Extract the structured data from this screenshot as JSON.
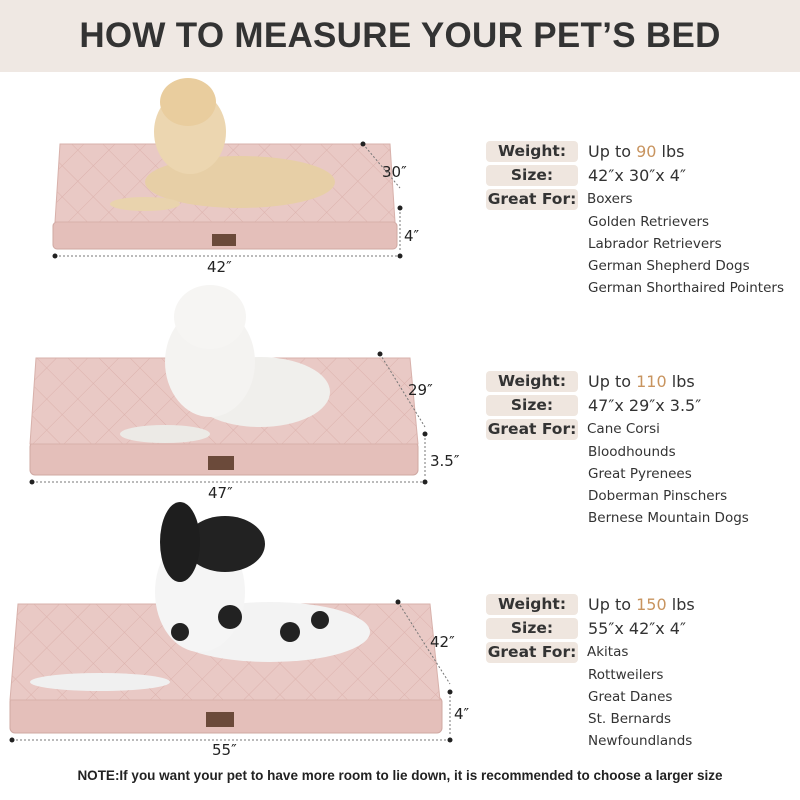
{
  "title": "HOW TO MEASURE YOUR PET’S BED",
  "colors": {
    "header_bg": "#efe8e3",
    "accent_number": "#c8945f",
    "bed": "#e9c9c5",
    "label_bg": "#efe6df"
  },
  "beds": [
    {
      "width": "42″",
      "depth": "30″",
      "height": "4″",
      "weight_label": "Weight:",
      "weight_prefix": "Up to ",
      "weight_value": "90",
      "weight_unit": " lbs",
      "size_label": "Size:",
      "size": "42″x 30″x 4″",
      "great_for_label": "Great For:",
      "breeds": [
        "Boxers",
        "Golden Retrievers",
        "Labrador Retrievers",
        "German Shepherd Dogs",
        "German Shorthaired Pointers"
      ]
    },
    {
      "width": "47″",
      "depth": "29″",
      "height": "3.5″",
      "weight_label": "Weight:",
      "weight_prefix": "Up to ",
      "weight_value": "110",
      "weight_unit": " lbs",
      "size_label": "Size:",
      "size": "47″x 29″x 3.5″",
      "great_for_label": "Great For:",
      "breeds": [
        "Cane Corsi",
        "Bloodhounds",
        "Great Pyrenees",
        "Doberman Pinschers",
        "Bernese Mountain Dogs"
      ]
    },
    {
      "width": "55″",
      "depth": "42″",
      "height": "4″",
      "weight_label": "Weight:",
      "weight_prefix": "Up to ",
      "weight_value": "150",
      "weight_unit": " lbs",
      "size_label": "Size:",
      "size": "55″x 42″x 4″",
      "great_for_label": "Great For:",
      "breeds": [
        "Akitas",
        "Rottweilers",
        "Great Danes",
        "St. Bernards",
        "Newfoundlands"
      ]
    }
  ],
  "note": "NOTE:If you want your pet to have more room to lie down, it is recommended to choose a larger size"
}
